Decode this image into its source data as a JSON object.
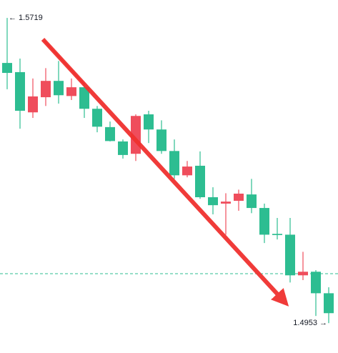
{
  "chart_data": {
    "type": "candlestick",
    "ylim": [
      1.4887,
      1.5764
    ],
    "up_color": "#ef4d5c",
    "down_color": "#2dbd91",
    "price_line": {
      "value": 1.5077,
      "color": "#2dbd91"
    },
    "annotations": [
      {
        "text": "← 1.5719",
        "value": 1.5719,
        "anchor": "start"
      },
      {
        "text": "1.4953 →",
        "value": 1.4953,
        "anchor": "end"
      }
    ],
    "open": [
      1.5606,
      1.5583,
      1.5482,
      1.552,
      1.5561,
      1.5523,
      1.5545,
      1.5491,
      1.5445,
      1.5409,
      1.5378,
      1.5477,
      1.5439,
      1.5385,
      1.5324,
      1.5348,
      1.5269,
      1.5253,
      1.526,
      1.5276,
      1.5242,
      1.5177,
      1.5175,
      1.5073,
      1.5082,
      1.5028
    ],
    "high": [
      1.5719,
      1.5617,
      1.5567,
      1.5593,
      1.5611,
      1.5567,
      1.5552,
      1.5498,
      1.5459,
      1.5414,
      1.5477,
      1.5486,
      1.5462,
      1.5414,
      1.536,
      1.5384,
      1.5294,
      1.5279,
      1.5288,
      1.5315,
      1.5253,
      1.5217,
      1.5217,
      1.5132,
      1.5086,
      1.5043
    ],
    "low": [
      1.554,
      1.5441,
      1.5468,
      1.5498,
      1.5504,
      1.5513,
      1.5468,
      1.5432,
      1.5409,
      1.5366,
      1.536,
      1.5405,
      1.5378,
      1.5315,
      1.5319,
      1.5265,
      1.5226,
      1.5175,
      1.5235,
      1.5229,
      1.5154,
      1.5163,
      1.5055,
      1.5061,
      1.4971,
      1.4953
    ],
    "close": [
      1.5581,
      1.5486,
      1.5522,
      1.5561,
      1.5525,
      1.5545,
      1.5491,
      1.5446,
      1.541,
      1.5375,
      1.5473,
      1.5439,
      1.5385,
      1.5324,
      1.5346,
      1.5269,
      1.5249,
      1.5258,
      1.5278,
      1.5242,
      1.5175,
      1.5174,
      1.5073,
      1.5082,
      1.5028,
      1.4978
    ]
  }
}
